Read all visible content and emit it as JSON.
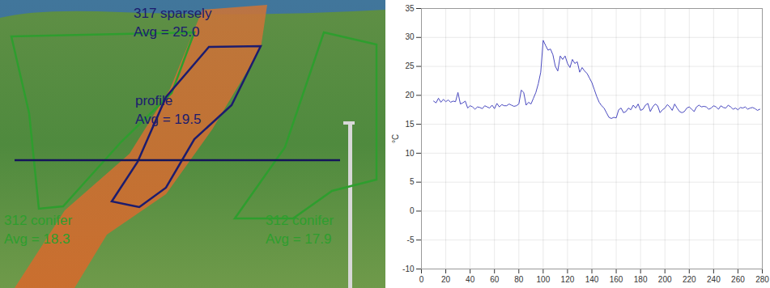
{
  "image": {
    "regions": [
      {
        "name": "317 sparsely",
        "average_label": "Avg = 25.0",
        "color": "#2e9e2e",
        "text_color": "#1c1c6e"
      },
      {
        "name": "profile",
        "average_label": "Avg = 19.5",
        "color": "#1c1c6e",
        "text_color": "#1c1c6e"
      },
      {
        "name": "312 conifer",
        "average_label": "Avg = 18.3",
        "color": "#2e9e2e",
        "text_color": "#2e9e2e"
      },
      {
        "name": "312 conifer",
        "average_label": "Avg = 17.9",
        "color": "#2e9e2e",
        "text_color": "#2e9e2e"
      }
    ]
  },
  "chart_data": {
    "type": "line",
    "y_label": "°C",
    "color": "#4a4ac0",
    "grid": true,
    "xlim": [
      0,
      280
    ],
    "ylim": [
      -10,
      35
    ],
    "xticks": [
      0,
      20,
      40,
      60,
      80,
      100,
      120,
      140,
      160,
      180,
      200,
      220,
      240,
      260,
      280
    ],
    "yticks": [
      -10,
      -5,
      0,
      5,
      10,
      15,
      20,
      25,
      30,
      35
    ],
    "x": [
      10,
      12,
      14,
      16,
      18,
      20,
      22,
      24,
      26,
      28,
      30,
      32,
      34,
      36,
      38,
      40,
      42,
      44,
      46,
      48,
      50,
      52,
      54,
      56,
      58,
      60,
      62,
      64,
      66,
      68,
      70,
      72,
      74,
      76,
      78,
      80,
      82,
      84,
      86,
      88,
      90,
      92,
      94,
      96,
      98,
      100,
      102,
      104,
      106,
      108,
      110,
      112,
      114,
      116,
      118,
      120,
      122,
      124,
      126,
      128,
      130,
      132,
      134,
      136,
      138,
      140,
      142,
      144,
      146,
      148,
      150,
      152,
      154,
      156,
      158,
      160,
      162,
      164,
      166,
      168,
      170,
      172,
      174,
      176,
      178,
      180,
      182,
      184,
      186,
      188,
      190,
      192,
      194,
      196,
      198,
      200,
      202,
      204,
      206,
      208,
      210,
      212,
      214,
      216,
      218,
      220,
      222,
      224,
      226,
      228,
      230,
      232,
      234,
      236,
      238,
      240,
      242,
      244,
      246,
      248,
      250,
      252,
      254,
      256,
      258,
      260,
      262,
      264,
      266,
      268,
      270,
      272,
      274,
      276,
      278
    ],
    "values": [
      19,
      18.7,
      19.5,
      18.8,
      19.3,
      18.9,
      19.2,
      18.8,
      19,
      18.9,
      20.5,
      18.5,
      18.7,
      19,
      17.8,
      18.2,
      18,
      17.6,
      18,
      17.9,
      17.7,
      18.2,
      18,
      17.8,
      18.3,
      17.7,
      18.6,
      18,
      18.4,
      18.2,
      18.2,
      18.5,
      18.3,
      18.1,
      18.2,
      18.5,
      20.9,
      20.5,
      18.3,
      18.8,
      18.5,
      19.5,
      20.5,
      22,
      24,
      29.5,
      28.6,
      27.8,
      28,
      27,
      25,
      24.2,
      26.8,
      26.2,
      26.8,
      25.5,
      24.8,
      26.2,
      25.5,
      25.8,
      24,
      24.8,
      24.2,
      23.8,
      23,
      22.2,
      21,
      19.8,
      18.8,
      18.2,
      17.8,
      17,
      16.2,
      16,
      16.2,
      16.1,
      17.5,
      17.8,
      17,
      17.2,
      17.8,
      17.5,
      18.3,
      17.8,
      18.5,
      17.4,
      17.6,
      18.3,
      18.6,
      17.2,
      18,
      18.5,
      18.2,
      17,
      17.5,
      17.8,
      18.4,
      18,
      17.4,
      18.5,
      17.8,
      17.2,
      17,
      17.2,
      17.8,
      18,
      17.6,
      17.2,
      18,
      18.3,
      18,
      18.1,
      18,
      17.6,
      17.8,
      18.2,
      18,
      17.6,
      18.2,
      17.9,
      17.8,
      18.3,
      18,
      17.6,
      17.8,
      17.5,
      17.9,
      17.8,
      18,
      17.6,
      17.8,
      17.9,
      17.7,
      17.4,
      17.6
    ]
  }
}
